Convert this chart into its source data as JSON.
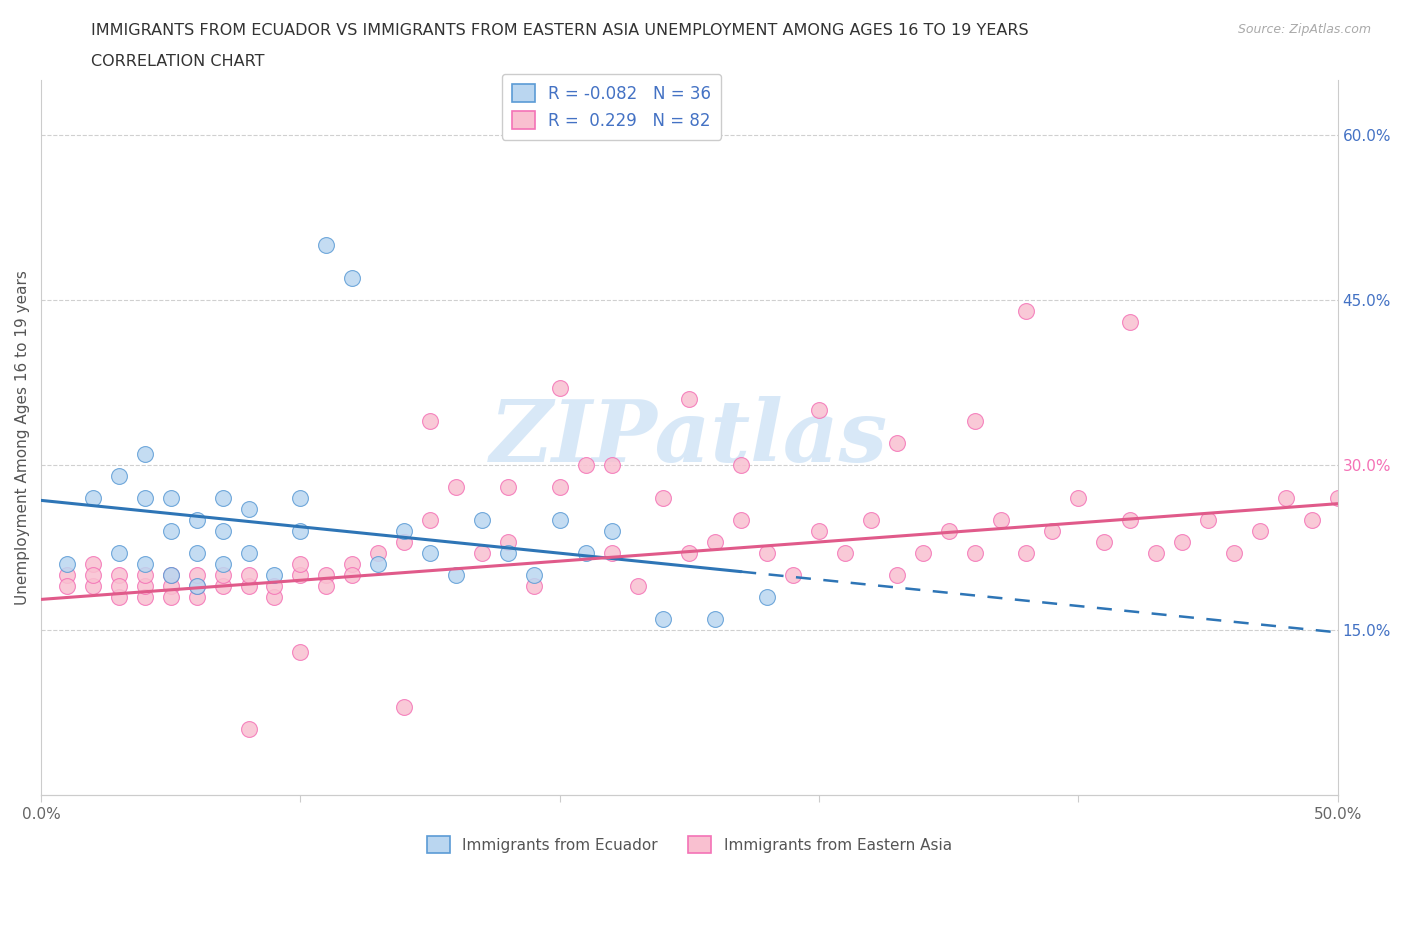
{
  "title_line1": "IMMIGRANTS FROM ECUADOR VS IMMIGRANTS FROM EASTERN ASIA UNEMPLOYMENT AMONG AGES 16 TO 19 YEARS",
  "title_line2": "CORRELATION CHART",
  "source_text": "Source: ZipAtlas.com",
  "ylabel": "Unemployment Among Ages 16 to 19 years",
  "xlim": [
    0.0,
    0.5
  ],
  "ylim": [
    0.0,
    0.65
  ],
  "xticks": [
    0.0,
    0.1,
    0.2,
    0.3,
    0.4,
    0.5
  ],
  "xticklabels": [
    "0.0%",
    "",
    "",
    "",
    "",
    "50.0%"
  ],
  "ytick_positions": [
    0.15,
    0.3,
    0.45,
    0.6
  ],
  "ytick_labels": [
    "15.0%",
    "30.0%",
    "45.0%",
    "60.0%"
  ],
  "ytick_colors": [
    "#4472c4",
    "#f472b6",
    "#4472c4",
    "#4472c4"
  ],
  "ecuador_fill": "#bad6f0",
  "ecuador_edge": "#5b9bd5",
  "eastern_asia_fill": "#f9c0d0",
  "eastern_asia_edge": "#f472b6",
  "ecuador_trend_color": "#2e75b6",
  "eastern_asia_trend_color": "#e05a8a",
  "watermark_color": "#c8dff5",
  "legend_R_ecuador": "-0.082",
  "legend_N_ecuador": "36",
  "legend_R_eastern_asia": "0.229",
  "legend_N_eastern_asia": "82",
  "ecuador_x": [
    0.01,
    0.02,
    0.03,
    0.03,
    0.04,
    0.04,
    0.04,
    0.05,
    0.05,
    0.05,
    0.06,
    0.06,
    0.06,
    0.07,
    0.07,
    0.07,
    0.08,
    0.08,
    0.09,
    0.1,
    0.1,
    0.11,
    0.12,
    0.13,
    0.14,
    0.15,
    0.16,
    0.17,
    0.18,
    0.19,
    0.2,
    0.21,
    0.22,
    0.24,
    0.26,
    0.28
  ],
  "ecuador_y": [
    0.21,
    0.27,
    0.22,
    0.29,
    0.21,
    0.27,
    0.31,
    0.2,
    0.24,
    0.27,
    0.19,
    0.22,
    0.25,
    0.21,
    0.24,
    0.27,
    0.22,
    0.26,
    0.2,
    0.24,
    0.27,
    0.5,
    0.47,
    0.21,
    0.24,
    0.22,
    0.2,
    0.25,
    0.22,
    0.2,
    0.25,
    0.22,
    0.24,
    0.16,
    0.16,
    0.18
  ],
  "eastern_asia_x": [
    0.01,
    0.01,
    0.02,
    0.02,
    0.02,
    0.03,
    0.03,
    0.03,
    0.04,
    0.04,
    0.04,
    0.05,
    0.05,
    0.05,
    0.06,
    0.06,
    0.06,
    0.07,
    0.07,
    0.08,
    0.08,
    0.09,
    0.09,
    0.1,
    0.1,
    0.11,
    0.11,
    0.12,
    0.12,
    0.13,
    0.14,
    0.15,
    0.16,
    0.17,
    0.18,
    0.19,
    0.2,
    0.21,
    0.22,
    0.23,
    0.24,
    0.25,
    0.26,
    0.27,
    0.28,
    0.29,
    0.3,
    0.31,
    0.32,
    0.33,
    0.34,
    0.35,
    0.36,
    0.37,
    0.38,
    0.39,
    0.4,
    0.41,
    0.42,
    0.43,
    0.44,
    0.45,
    0.46,
    0.47,
    0.48,
    0.49,
    0.5,
    0.51,
    0.38,
    0.42,
    0.2,
    0.25,
    0.3,
    0.15,
    0.18,
    0.22,
    0.33,
    0.27,
    0.36,
    0.1,
    0.14,
    0.08
  ],
  "eastern_asia_y": [
    0.2,
    0.19,
    0.21,
    0.19,
    0.2,
    0.18,
    0.2,
    0.19,
    0.18,
    0.19,
    0.2,
    0.19,
    0.18,
    0.2,
    0.18,
    0.19,
    0.2,
    0.19,
    0.2,
    0.19,
    0.2,
    0.18,
    0.19,
    0.2,
    0.21,
    0.2,
    0.19,
    0.21,
    0.2,
    0.22,
    0.23,
    0.25,
    0.28,
    0.22,
    0.23,
    0.19,
    0.28,
    0.3,
    0.22,
    0.19,
    0.27,
    0.22,
    0.23,
    0.25,
    0.22,
    0.2,
    0.24,
    0.22,
    0.25,
    0.2,
    0.22,
    0.24,
    0.22,
    0.25,
    0.22,
    0.24,
    0.27,
    0.23,
    0.25,
    0.22,
    0.23,
    0.25,
    0.22,
    0.24,
    0.27,
    0.25,
    0.27,
    0.25,
    0.44,
    0.43,
    0.37,
    0.36,
    0.35,
    0.34,
    0.28,
    0.3,
    0.32,
    0.3,
    0.34,
    0.13,
    0.08,
    0.06
  ]
}
